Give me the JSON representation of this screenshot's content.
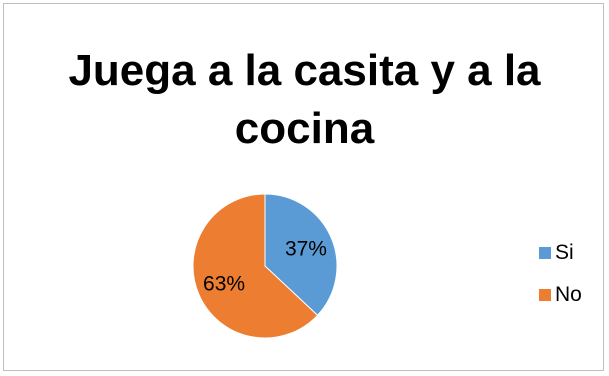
{
  "chart_data": {
    "type": "pie",
    "title": "Juega a la casita y a la cocina",
    "categories": [
      "Si",
      "No"
    ],
    "values": [
      37,
      63
    ],
    "data_labels": [
      "37%",
      "63%"
    ],
    "colors": [
      "#5b9bd5",
      "#ed7d31"
    ],
    "legend_position": "right"
  }
}
